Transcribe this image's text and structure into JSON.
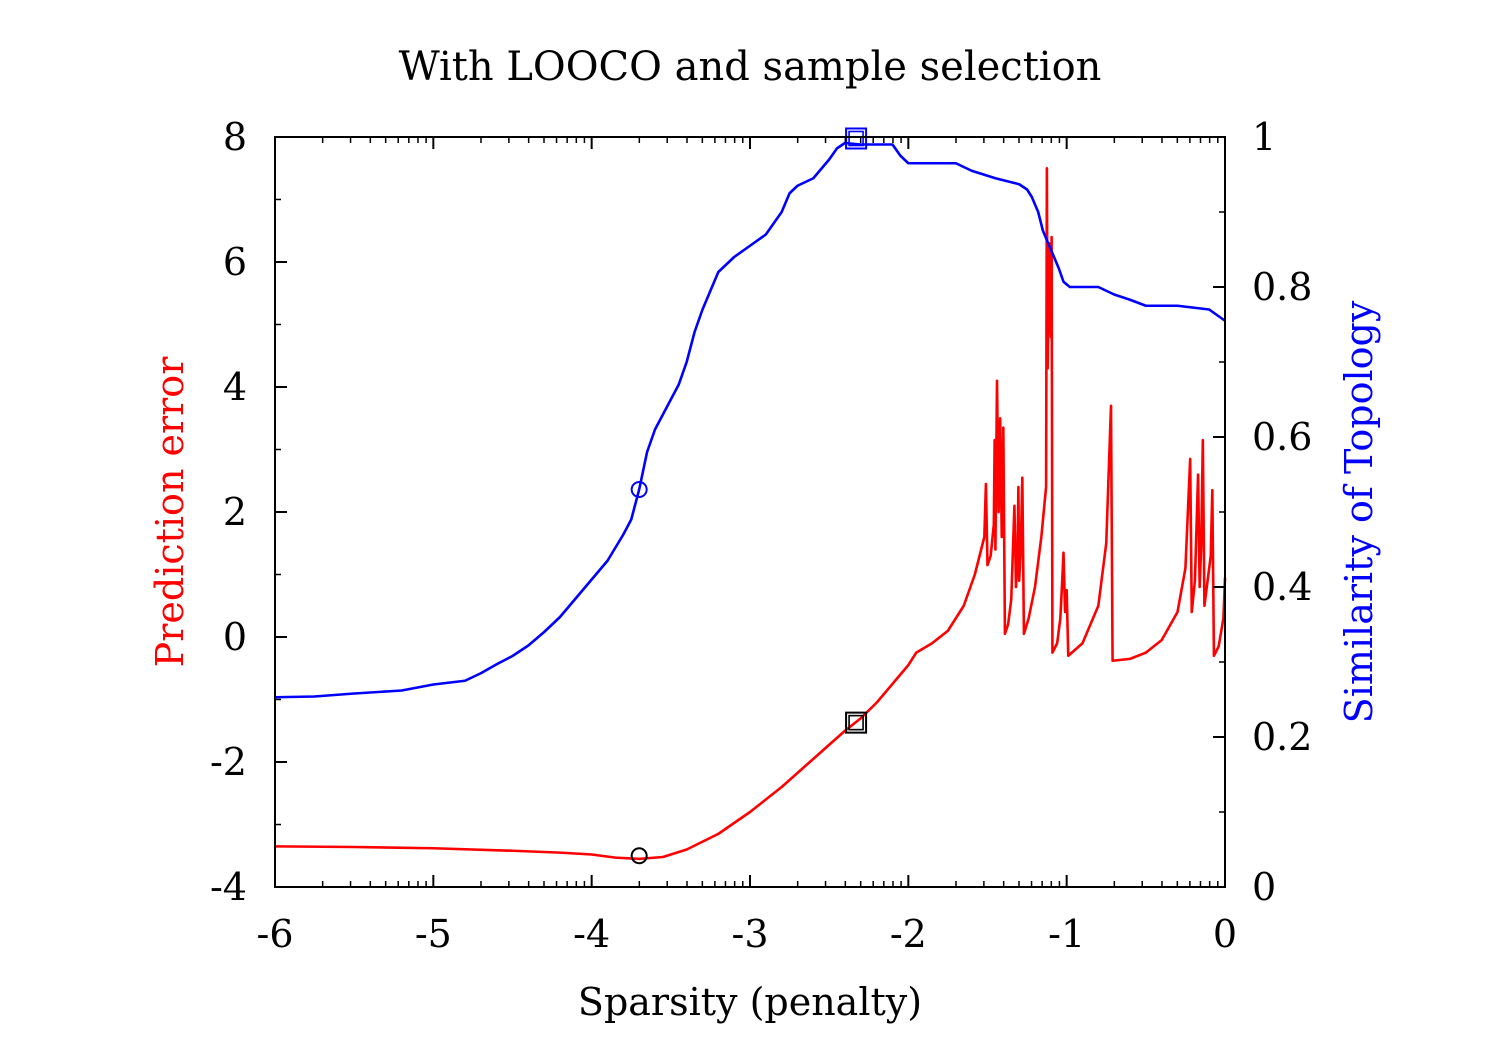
{
  "chart_data": {
    "type": "line",
    "title": "With LOOCO and sample selection",
    "xlabel": "Sparsity (penalty)",
    "ylabel_left": "Prediction error",
    "ylabel_right": "Similarity of Topology",
    "xlim": [
      -6,
      0
    ],
    "ylim_left": [
      -4,
      8
    ],
    "ylim_right": [
      0,
      1
    ],
    "x_ticks": [
      -6,
      -5,
      -4,
      -3,
      -2,
      -1,
      0
    ],
    "x_tick_labels": [
      "-6",
      "-5",
      "-4",
      "-3",
      "-2",
      "-1",
      "0"
    ],
    "y_left_ticks": [
      -4,
      -2,
      0,
      2,
      4,
      6,
      8
    ],
    "y_left_tick_labels": [
      "-4",
      "-2",
      "0",
      "2",
      "4",
      "6",
      "8"
    ],
    "y_right_ticks": [
      0,
      0.2,
      0.4,
      0.6,
      0.8,
      1
    ],
    "y_right_tick_labels": [
      "0",
      "0.2",
      "0.4",
      "0.6",
      "0.8",
      "1"
    ],
    "grid": false,
    "colors": {
      "left_axis": "#ff0000",
      "right_axis": "#0000ff",
      "frame": "#000000"
    },
    "series": [
      {
        "axis": "left",
        "color": "#ff0000",
        "points": [
          [
            -6.0,
            -3.35
          ],
          [
            -5.5,
            -3.36
          ],
          [
            -5.0,
            -3.38
          ],
          [
            -4.5,
            -3.42
          ],
          [
            -4.2,
            -3.45
          ],
          [
            -4.0,
            -3.48
          ],
          [
            -3.85,
            -3.53
          ],
          [
            -3.7,
            -3.55
          ],
          [
            -3.55,
            -3.52
          ],
          [
            -3.4,
            -3.4
          ],
          [
            -3.2,
            -3.15
          ],
          [
            -3.0,
            -2.8
          ],
          [
            -2.8,
            -2.4
          ],
          [
            -2.6,
            -1.95
          ],
          [
            -2.4,
            -1.5
          ],
          [
            -2.3,
            -1.3
          ],
          [
            -2.2,
            -1.05
          ],
          [
            -2.1,
            -0.75
          ],
          [
            -2.0,
            -0.45
          ],
          [
            -1.95,
            -0.25
          ],
          [
            -1.85,
            -0.1
          ],
          [
            -1.75,
            0.1
          ],
          [
            -1.65,
            0.5
          ],
          [
            -1.58,
            1.0
          ],
          [
            -1.52,
            1.6
          ],
          [
            -1.51,
            2.45
          ],
          [
            -1.5,
            1.15
          ],
          [
            -1.48,
            1.3
          ],
          [
            -1.46,
            1.8
          ],
          [
            -1.455,
            3.15
          ],
          [
            -1.45,
            1.4
          ],
          [
            -1.44,
            4.1
          ],
          [
            -1.43,
            2.0
          ],
          [
            -1.42,
            3.5
          ],
          [
            -1.41,
            1.6
          ],
          [
            -1.4,
            3.35
          ],
          [
            -1.39,
            0.05
          ],
          [
            -1.37,
            0.2
          ],
          [
            -1.35,
            0.6
          ],
          [
            -1.33,
            2.1
          ],
          [
            -1.32,
            0.8
          ],
          [
            -1.31,
            1.3
          ],
          [
            -1.305,
            2.4
          ],
          [
            -1.3,
            0.9
          ],
          [
            -1.29,
            1.4
          ],
          [
            -1.28,
            2.55
          ],
          [
            -1.27,
            0.05
          ],
          [
            -1.24,
            0.3
          ],
          [
            -1.2,
            0.8
          ],
          [
            -1.16,
            1.6
          ],
          [
            -1.13,
            2.4
          ],
          [
            -1.125,
            7.5
          ],
          [
            -1.12,
            4.3
          ],
          [
            -1.11,
            6.3
          ],
          [
            -1.1,
            4.8
          ],
          [
            -1.095,
            6.4
          ],
          [
            -1.09,
            -0.25
          ],
          [
            -1.06,
            -0.1
          ],
          [
            -1.04,
            0.3
          ],
          [
            -1.03,
            0.8
          ],
          [
            -1.02,
            1.35
          ],
          [
            -1.01,
            0.4
          ],
          [
            -1.0,
            0.75
          ],
          [
            -0.99,
            -0.3
          ],
          [
            -0.9,
            -0.1
          ],
          [
            -0.8,
            0.5
          ],
          [
            -0.75,
            1.5
          ],
          [
            -0.72,
            3.7
          ],
          [
            -0.71,
            -0.38
          ],
          [
            -0.6,
            -0.35
          ],
          [
            -0.5,
            -0.25
          ],
          [
            -0.4,
            -0.05
          ],
          [
            -0.3,
            0.4
          ],
          [
            -0.25,
            1.1
          ],
          [
            -0.22,
            2.85
          ],
          [
            -0.21,
            0.4
          ],
          [
            -0.19,
            0.9
          ],
          [
            -0.17,
            2.6
          ],
          [
            -0.16,
            0.8
          ],
          [
            -0.15,
            1.5
          ],
          [
            -0.14,
            3.15
          ],
          [
            -0.13,
            0.5
          ],
          [
            -0.11,
            0.9
          ],
          [
            -0.09,
            1.3
          ],
          [
            -0.08,
            2.35
          ],
          [
            -0.07,
            -0.3
          ],
          [
            -0.04,
            -0.15
          ],
          [
            -0.01,
            0.3
          ],
          [
            0.0,
            0.95
          ]
        ]
      },
      {
        "axis": "right",
        "color": "#0000ff",
        "points": [
          [
            -6.0,
            0.253
          ],
          [
            -5.75,
            0.254
          ],
          [
            -5.5,
            0.258
          ],
          [
            -5.2,
            0.262
          ],
          [
            -5.0,
            0.27
          ],
          [
            -4.8,
            0.275
          ],
          [
            -4.7,
            0.285
          ],
          [
            -4.6,
            0.297
          ],
          [
            -4.5,
            0.308
          ],
          [
            -4.4,
            0.322
          ],
          [
            -4.3,
            0.34
          ],
          [
            -4.2,
            0.36
          ],
          [
            -4.1,
            0.385
          ],
          [
            -4.0,
            0.41
          ],
          [
            -3.9,
            0.435
          ],
          [
            -3.8,
            0.47
          ],
          [
            -3.75,
            0.49
          ],
          [
            -3.7,
            0.53
          ],
          [
            -3.65,
            0.58
          ],
          [
            -3.6,
            0.61
          ],
          [
            -3.5,
            0.65
          ],
          [
            -3.45,
            0.67
          ],
          [
            -3.4,
            0.7
          ],
          [
            -3.35,
            0.74
          ],
          [
            -3.3,
            0.77
          ],
          [
            -3.2,
            0.82
          ],
          [
            -3.1,
            0.84
          ],
          [
            -3.0,
            0.855
          ],
          [
            -2.9,
            0.87
          ],
          [
            -2.8,
            0.9
          ],
          [
            -2.75,
            0.925
          ],
          [
            -2.7,
            0.935
          ],
          [
            -2.6,
            0.945
          ],
          [
            -2.5,
            0.97
          ],
          [
            -2.45,
            0.985
          ],
          [
            -2.4,
            0.992
          ],
          [
            -2.3,
            0.99
          ],
          [
            -2.1,
            0.99
          ],
          [
            -2.05,
            0.975
          ],
          [
            -2.0,
            0.965
          ],
          [
            -1.7,
            0.965
          ],
          [
            -1.6,
            0.955
          ],
          [
            -1.45,
            0.945
          ],
          [
            -1.3,
            0.937
          ],
          [
            -1.25,
            0.93
          ],
          [
            -1.22,
            0.92
          ],
          [
            -1.18,
            0.9
          ],
          [
            -1.15,
            0.875
          ],
          [
            -1.1,
            0.85
          ],
          [
            -1.05,
            0.825
          ],
          [
            -1.02,
            0.807
          ],
          [
            -0.98,
            0.8
          ],
          [
            -0.8,
            0.8
          ],
          [
            -0.7,
            0.79
          ],
          [
            -0.6,
            0.783
          ],
          [
            -0.5,
            0.775
          ],
          [
            -0.3,
            0.775
          ],
          [
            -0.1,
            0.77
          ],
          [
            0.0,
            0.755
          ]
        ]
      }
    ],
    "markers": [
      {
        "axis": "left",
        "shape": "circle",
        "color": "#000000",
        "x": -3.7,
        "y": -3.5
      },
      {
        "axis": "left",
        "shape": "square",
        "color": "#000000",
        "x": -2.33,
        "y": -1.37
      },
      {
        "axis": "right",
        "shape": "circle",
        "color": "#0000ff",
        "x": -3.7,
        "y": 0.53
      },
      {
        "axis": "right",
        "shape": "square",
        "color": "#0000ff",
        "x": -2.33,
        "y": 0.998
      }
    ]
  }
}
